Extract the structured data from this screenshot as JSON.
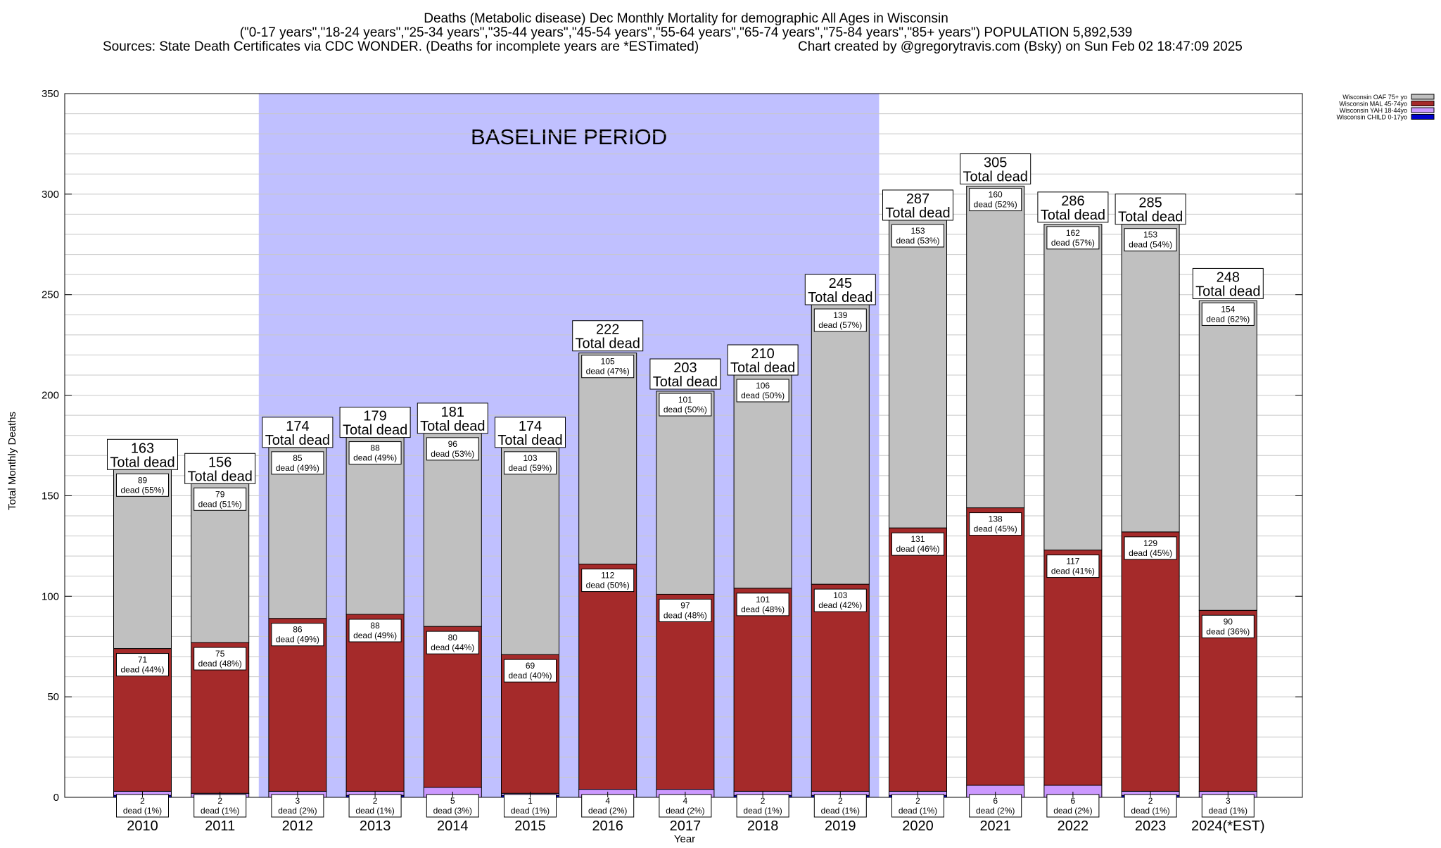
{
  "header": {
    "title": "Deaths (Metabolic disease) Dec Monthly Mortality for demographic All Ages in Wisconsin",
    "subtitle": "(\"0-17 years\",\"18-24 years\",\"25-34 years\",\"35-44 years\",\"45-54 years\",\"55-64 years\",\"65-74 years\",\"75-84 years\",\"85+ years\") POPULATION 5,892,539",
    "sources": "Sources: State Death Certificates via CDC WONDER. (Deaths for incomplete years are *ESTimated)",
    "credit": "Chart created by @gregorytravis.com (Bsky) on Sun Feb 02 18:47:09 2025"
  },
  "chart_data": {
    "type": "bar",
    "stacked": true,
    "xlabel": "Year",
    "ylabel": "Total Monthly Deaths",
    "ylim": [
      0,
      350
    ],
    "yticks": [
      0,
      50,
      100,
      150,
      200,
      250,
      300,
      350
    ],
    "grid": true,
    "legend_position": "top-right",
    "total_label": "Total dead",
    "dead_word": "dead",
    "categories": [
      "2010",
      "2011",
      "2012",
      "2013",
      "2014",
      "2015",
      "2016",
      "2017",
      "2018",
      "2019",
      "2020",
      "2021",
      "2022",
      "2023",
      "2024(*EST)"
    ],
    "totals": [
      163,
      156,
      174,
      179,
      181,
      174,
      222,
      203,
      210,
      245,
      287,
      305,
      286,
      285,
      248
    ],
    "series": [
      {
        "name": "Wisconsin CHILD 0-17yo",
        "color": "#0000cc",
        "values": [
          1,
          0,
          0,
          1,
          0,
          1,
          0,
          0,
          1,
          1,
          1,
          0,
          0,
          1,
          0
        ],
        "labels": []
      },
      {
        "name": "Wisconsin YAH 18-44yo",
        "color": "#cc99ff",
        "values": [
          2,
          2,
          3,
          2,
          5,
          1,
          4,
          4,
          2,
          2,
          2,
          6,
          6,
          2,
          3
        ],
        "labels": [
          "(1%)",
          "(1%)",
          "(2%)",
          "(1%)",
          "(3%)",
          "(1%)",
          "(2%)",
          "(2%)",
          "(1%)",
          "(1%)",
          "(1%)",
          "(2%)",
          "(2%)",
          "(1%)",
          "(1%)"
        ]
      },
      {
        "name": "Wisconsin MAL 45-74yo",
        "color": "#a52a2a",
        "values": [
          71,
          75,
          86,
          88,
          80,
          69,
          112,
          97,
          101,
          103,
          131,
          138,
          117,
          129,
          90
        ],
        "labels": [
          "(44%)",
          "(48%)",
          "(49%)",
          "(49%)",
          "(44%)",
          "(40%)",
          "(50%)",
          "(48%)",
          "(48%)",
          "(42%)",
          "(46%)",
          "(45%)",
          "(41%)",
          "(45%)",
          "(36%)"
        ]
      },
      {
        "name": "Wisconsin OAF 75+ yo",
        "color": "#c0c0c0",
        "values": [
          89,
          79,
          85,
          88,
          96,
          103,
          105,
          101,
          106,
          139,
          153,
          160,
          162,
          153,
          154
        ],
        "labels": [
          "(55%)",
          "(51%)",
          "(49%)",
          "(49%)",
          "(53%)",
          "(59%)",
          "(47%)",
          "(50%)",
          "(50%)",
          "(57%)",
          "(53%)",
          "(52%)",
          "(57%)",
          "(54%)",
          "(62%)"
        ]
      }
    ],
    "annotations": [
      {
        "text": "BASELINE PERIOD",
        "from": "2012",
        "to": "2019",
        "color": "#c0c0ff"
      }
    ]
  }
}
